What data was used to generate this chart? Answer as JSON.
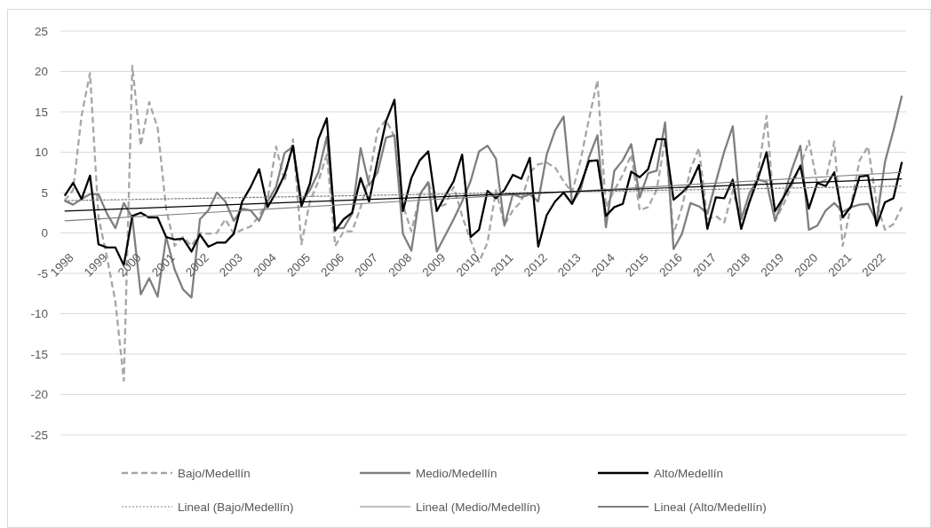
{
  "chart_data": {
    "type": "line",
    "categories": [
      "1998",
      null,
      null,
      null,
      "1999",
      null,
      null,
      null,
      "2000",
      null,
      null,
      null,
      "2001",
      null,
      null,
      null,
      "2002",
      null,
      null,
      null,
      "2003",
      null,
      null,
      null,
      "2004",
      null,
      null,
      null,
      "2005",
      null,
      null,
      null,
      "2006",
      null,
      null,
      null,
      "2007",
      null,
      null,
      null,
      "2008",
      null,
      null,
      null,
      "2009",
      null,
      null,
      null,
      "2010",
      null,
      null,
      null,
      "2011",
      null,
      null,
      null,
      "2012",
      null,
      null,
      null,
      "2013",
      null,
      null,
      null,
      "2014",
      null,
      null,
      null,
      "2015",
      null,
      null,
      null,
      "2016",
      null,
      null,
      null,
      "2017",
      null,
      null,
      null,
      "2018",
      null,
      null,
      null,
      "2019",
      null,
      null,
      null,
      "2020",
      null,
      null,
      null,
      "2021",
      null,
      null,
      null,
      "2022",
      null,
      null,
      null
    ],
    "ylim": [
      -25,
      25
    ],
    "yticks": [
      -25,
      -20,
      -15,
      -10,
      -5,
      0,
      5,
      10,
      15,
      20,
      25
    ],
    "grid": "y",
    "legend": "bottom",
    "marker": "none",
    "series": [
      {
        "name": "Bajo/Medellín",
        "color": "#a6a6a6",
        "line_style": "dashed",
        "values": [
          4.0,
          5.3,
          14.5,
          19.8,
          2.0,
          -3.0,
          -8.5,
          -18.3,
          20.7,
          10.8,
          16.2,
          13.0,
          3.0,
          -1.6,
          -0.5,
          -1.6,
          0.0,
          -0.1,
          0.0,
          1.7,
          -0.1,
          0.4,
          0.8,
          2.1,
          4.2,
          10.7,
          6.4,
          11.6,
          -1.4,
          3.9,
          6.4,
          9.7,
          -1.6,
          0.2,
          0.2,
          3.2,
          6.8,
          12.7,
          14.0,
          11.9,
          3.5,
          0.2,
          4.6,
          6.3,
          3.2,
          3.5,
          5.7,
          2.1,
          -0.9,
          -3.6,
          -1.2,
          5.3,
          1.0,
          2.8,
          3.9,
          7.5,
          8.5,
          8.7,
          8.1,
          6.4,
          5.0,
          9.0,
          14.1,
          18.9,
          3.2,
          5.3,
          7.2,
          9.7,
          2.8,
          3.2,
          5.3,
          11.6,
          -0.1,
          3.2,
          7.9,
          10.5,
          1.7,
          2.1,
          1.3,
          5.2,
          1.7,
          3.9,
          7.5,
          14.5,
          1.5,
          3.5,
          5.9,
          8.3,
          11.4,
          6.1,
          6.6,
          11.3,
          -1.6,
          3.5,
          9.0,
          10.7,
          3.7,
          0.4,
          1.1,
          3.2
        ]
      },
      {
        "name": "Medio/Medellín",
        "color": "#7f7f7f",
        "line_style": "solid",
        "values": [
          4.0,
          3.5,
          4.2,
          4.8,
          4.8,
          2.4,
          0.6,
          3.7,
          1.9,
          -7.6,
          -5.6,
          -7.9,
          -0.5,
          -4.5,
          -7.0,
          -8.0,
          1.7,
          2.8,
          5.0,
          3.9,
          1.5,
          3.0,
          2.8,
          1.5,
          3.9,
          5.7,
          9.9,
          10.7,
          3.9,
          5.3,
          7.5,
          11.9,
          0.6,
          0.6,
          2.4,
          10.5,
          5.9,
          7.5,
          11.8,
          12.1,
          -0.1,
          -2.2,
          4.8,
          6.3,
          -2.3,
          -0.3,
          1.7,
          3.9,
          6.4,
          10.1,
          10.8,
          9.2,
          0.9,
          4.8,
          4.4,
          4.8,
          3.9,
          9.7,
          12.7,
          14.4,
          3.7,
          5.3,
          9.4,
          12.1,
          0.7,
          7.7,
          9.0,
          11.0,
          4.4,
          7.4,
          7.7,
          13.7,
          -2.0,
          -0.1,
          3.7,
          3.3,
          2.4,
          6.3,
          10.1,
          13.2,
          1.7,
          5.0,
          6.6,
          6.3,
          1.5,
          4.4,
          7.9,
          10.8,
          0.4,
          0.9,
          2.8,
          3.7,
          2.6,
          3.2,
          3.5,
          3.6,
          1.4,
          8.8,
          12.7,
          17.0
        ]
      },
      {
        "name": "Alto/Medellín",
        "color": "#000000",
        "line_style": "solid",
        "values": [
          4.6,
          6.2,
          4.2,
          7.1,
          -1.4,
          -1.8,
          -1.8,
          -4.0,
          2.1,
          2.5,
          1.9,
          1.9,
          -0.5,
          -0.8,
          -0.7,
          -2.3,
          -0.2,
          -1.7,
          -1.2,
          -1.2,
          -0.1,
          3.9,
          5.7,
          7.9,
          3.2,
          5.0,
          7.2,
          10.8,
          3.3,
          6.1,
          11.6,
          14.2,
          0.3,
          1.7,
          2.5,
          6.8,
          3.9,
          9.0,
          13.8,
          16.5,
          2.7,
          6.8,
          9.0,
          10.1,
          2.7,
          4.6,
          6.4,
          9.7,
          -0.5,
          0.4,
          5.2,
          4.3,
          5.3,
          7.2,
          6.7,
          9.3,
          -1.7,
          2.2,
          3.9,
          5.0,
          3.6,
          5.9,
          8.9,
          9.0,
          2.1,
          3.2,
          3.6,
          7.6,
          6.9,
          7.9,
          11.6,
          11.6,
          4.1,
          5.0,
          6.1,
          8.4,
          0.5,
          4.4,
          4.3,
          6.6,
          0.5,
          3.9,
          6.8,
          10.0,
          2.7,
          4.4,
          6.3,
          8.3,
          3.0,
          6.2,
          5.8,
          7.5,
          1.9,
          3.3,
          7.0,
          7.1,
          0.9,
          3.8,
          4.3,
          8.8
        ]
      },
      {
        "name": "Lineal (Bajo/Medellín)",
        "color": "#7f7f7f",
        "line_style": "dotted",
        "values": [
          4.0,
          null,
          null,
          null,
          null,
          null,
          null,
          null,
          null,
          null,
          null,
          null,
          null,
          null,
          null,
          null,
          null,
          null,
          null,
          null,
          null,
          null,
          null,
          null,
          null,
          null,
          null,
          null,
          null,
          null,
          null,
          null,
          null,
          null,
          null,
          null,
          null,
          null,
          null,
          null,
          null,
          null,
          null,
          null,
          null,
          null,
          null,
          null,
          null,
          null,
          null,
          null,
          null,
          null,
          null,
          null,
          null,
          null,
          null,
          null,
          null,
          null,
          null,
          null,
          null,
          null,
          null,
          null,
          null,
          null,
          null,
          null,
          null,
          null,
          null,
          null,
          null,
          null,
          null,
          null,
          null,
          null,
          null,
          null,
          null,
          null,
          null,
          null,
          null,
          null,
          null,
          null,
          null,
          null,
          null,
          null,
          null,
          null,
          null,
          5.8
        ]
      },
      {
        "name": "Lineal (Medio/Medellín)",
        "color": "#7f7f7f",
        "line_style": "solid",
        "values": [
          1.5,
          null,
          null,
          null,
          null,
          null,
          null,
          null,
          null,
          null,
          null,
          null,
          null,
          null,
          null,
          null,
          null,
          null,
          null,
          null,
          null,
          null,
          null,
          null,
          null,
          null,
          null,
          null,
          null,
          null,
          null,
          null,
          null,
          null,
          null,
          null,
          null,
          null,
          null,
          null,
          null,
          null,
          null,
          null,
          null,
          null,
          null,
          null,
          null,
          null,
          null,
          null,
          null,
          null,
          null,
          null,
          null,
          null,
          null,
          null,
          null,
          null,
          null,
          null,
          null,
          null,
          null,
          null,
          null,
          null,
          null,
          null,
          null,
          null,
          null,
          null,
          null,
          null,
          null,
          null,
          null,
          null,
          null,
          null,
          null,
          null,
          null,
          null,
          null,
          null,
          null,
          null,
          null,
          null,
          null,
          null,
          null,
          null,
          null,
          7.5
        ]
      },
      {
        "name": "Lineal (Alto/Medellín)",
        "color": "#000000",
        "line_style": "solid",
        "values": [
          2.7,
          null,
          null,
          null,
          null,
          null,
          null,
          null,
          null,
          null,
          null,
          null,
          null,
          null,
          null,
          null,
          null,
          null,
          null,
          null,
          null,
          null,
          null,
          null,
          null,
          null,
          null,
          null,
          null,
          null,
          null,
          null,
          null,
          null,
          null,
          null,
          null,
          null,
          null,
          null,
          null,
          null,
          null,
          null,
          null,
          null,
          null,
          null,
          null,
          null,
          null,
          null,
          null,
          null,
          null,
          null,
          null,
          null,
          null,
          null,
          null,
          null,
          null,
          null,
          null,
          null,
          null,
          null,
          null,
          null,
          null,
          null,
          null,
          null,
          null,
          null,
          null,
          null,
          null,
          null,
          null,
          null,
          null,
          null,
          null,
          null,
          null,
          null,
          null,
          null,
          null,
          null,
          null,
          null,
          null,
          null,
          null,
          null,
          null,
          6.7
        ]
      }
    ]
  }
}
